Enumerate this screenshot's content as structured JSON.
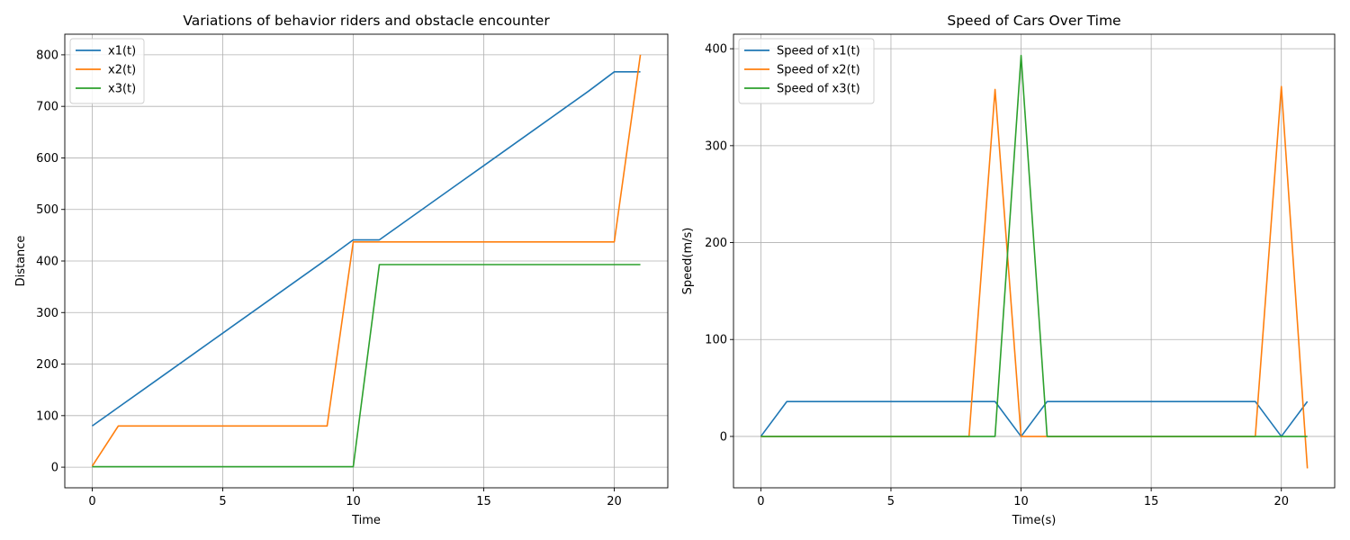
{
  "chart_data": [
    {
      "type": "line",
      "title": "Variations of behavior riders and obstacle encounter",
      "xlabel": "Time",
      "ylabel": "Distance",
      "xlim": [
        -1.05,
        22.05
      ],
      "ylim": [
        -40,
        840
      ],
      "xticks": [
        0,
        5,
        10,
        15,
        20
      ],
      "yticks": [
        0,
        100,
        200,
        300,
        400,
        500,
        600,
        700,
        800
      ],
      "grid": true,
      "legend_position": "upper left",
      "x": [
        0,
        1,
        2,
        3,
        4,
        5,
        6,
        7,
        8,
        9,
        10,
        11,
        12,
        13,
        14,
        15,
        16,
        17,
        18,
        19,
        20,
        21
      ],
      "series": [
        {
          "name": "x1(t)",
          "color": "#1f77b4",
          "values": [
            80,
            116,
            152,
            188,
            224,
            260,
            296,
            332,
            368,
            404,
            441,
            441,
            477,
            513,
            549,
            585,
            621,
            657,
            693,
            729,
            767,
            767
          ]
        },
        {
          "name": "x2(t)",
          "color": "#ff7f0e",
          "values": [
            2,
            80,
            80,
            80,
            80,
            80,
            80,
            80,
            80,
            80,
            437,
            437,
            437,
            437,
            437,
            437,
            437,
            437,
            437,
            437,
            437,
            800
          ]
        },
        {
          "name": "x3(t)",
          "color": "#2ca02c",
          "values": [
            1,
            1,
            1,
            1,
            1,
            1,
            1,
            1,
            1,
            1,
            1,
            393,
            393,
            393,
            393,
            393,
            393,
            393,
            393,
            393,
            393,
            393
          ]
        }
      ]
    },
    {
      "type": "line",
      "title": "Speed of Cars Over Time",
      "xlabel": "Time(s)",
      "ylabel": "Speed(m/s)",
      "xlim": [
        -1.05,
        22.05
      ],
      "ylim": [
        -53,
        415
      ],
      "xticks": [
        0,
        5,
        10,
        15,
        20
      ],
      "yticks": [
        0,
        100,
        200,
        300,
        400
      ],
      "grid": true,
      "legend_position": "upper left",
      "x": [
        0,
        1,
        2,
        3,
        4,
        5,
        6,
        7,
        8,
        9,
        10,
        11,
        12,
        13,
        14,
        15,
        16,
        17,
        18,
        19,
        20,
        21
      ],
      "series": [
        {
          "name": "Speed of x1(t)",
          "color": "#1f77b4",
          "values": [
            0,
            36,
            36,
            36,
            36,
            36,
            36,
            36,
            36,
            36,
            0,
            36,
            36,
            36,
            36,
            36,
            36,
            36,
            36,
            36,
            0,
            36
          ]
        },
        {
          "name": "Speed of x2(t)",
          "color": "#ff7f0e",
          "values": [
            0,
            0,
            0,
            0,
            0,
            0,
            0,
            0,
            0,
            358,
            0,
            0,
            0,
            0,
            0,
            0,
            0,
            0,
            0,
            0,
            361,
            -33
          ]
        },
        {
          "name": "Speed of x3(t)",
          "color": "#2ca02c",
          "values": [
            0,
            0,
            0,
            0,
            0,
            0,
            0,
            0,
            0,
            0,
            393,
            0,
            0,
            0,
            0,
            0,
            0,
            0,
            0,
            0,
            0,
            0
          ]
        }
      ]
    }
  ]
}
